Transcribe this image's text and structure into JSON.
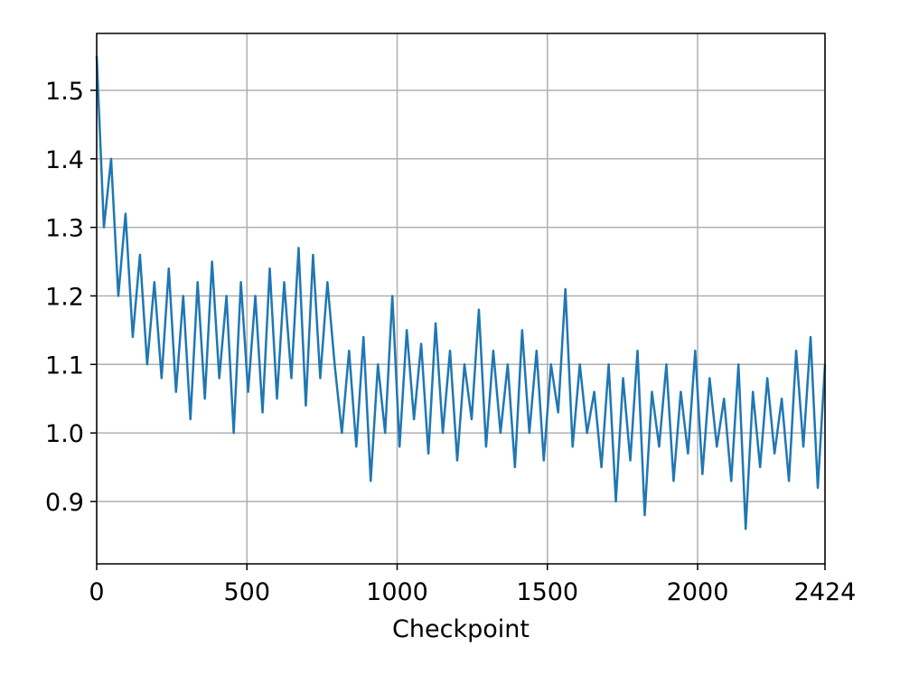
{
  "chart_data": {
    "type": "line",
    "x_label": "Checkpoint",
    "x": [
      0,
      24,
      48,
      72,
      96,
      120,
      144,
      168,
      192,
      216,
      240,
      264,
      288,
      312,
      336,
      360,
      384,
      408,
      432,
      456,
      480,
      504,
      528,
      552,
      576,
      600,
      624,
      648,
      672,
      696,
      720,
      744,
      768,
      792,
      816,
      840,
      864,
      888,
      912,
      936,
      960,
      984,
      1008,
      1032,
      1056,
      1080,
      1104,
      1128,
      1152,
      1176,
      1200,
      1224,
      1248,
      1272,
      1296,
      1320,
      1344,
      1368,
      1392,
      1416,
      1440,
      1464,
      1488,
      1512,
      1536,
      1560,
      1584,
      1608,
      1632,
      1656,
      1680,
      1704,
      1728,
      1752,
      1776,
      1800,
      1824,
      1848,
      1872,
      1896,
      1920,
      1944,
      1968,
      1992,
      2016,
      2040,
      2064,
      2088,
      2112,
      2136,
      2160,
      2184,
      2208,
      2232,
      2256,
      2280,
      2304,
      2328,
      2352,
      2376,
      2400,
      2424
    ],
    "series": [
      {
        "color": "#1f77b4",
        "values": [
          1.55,
          1.3,
          1.4,
          1.2,
          1.32,
          1.14,
          1.26,
          1.1,
          1.22,
          1.08,
          1.24,
          1.06,
          1.2,
          1.02,
          1.22,
          1.05,
          1.25,
          1.08,
          1.2,
          1.0,
          1.22,
          1.06,
          1.2,
          1.03,
          1.24,
          1.05,
          1.22,
          1.08,
          1.27,
          1.04,
          1.26,
          1.08,
          1.22,
          1.1,
          1.0,
          1.12,
          0.98,
          1.14,
          0.93,
          1.1,
          1.0,
          1.2,
          0.98,
          1.15,
          1.02,
          1.13,
          0.97,
          1.16,
          1.0,
          1.12,
          0.96,
          1.1,
          1.02,
          1.18,
          0.98,
          1.12,
          1.0,
          1.1,
          0.95,
          1.15,
          1.0,
          1.12,
          0.96,
          1.1,
          1.03,
          1.21,
          0.98,
          1.1,
          1.0,
          1.06,
          0.95,
          1.1,
          0.9,
          1.08,
          0.96,
          1.12,
          0.88,
          1.06,
          0.98,
          1.1,
          0.93,
          1.06,
          0.97,
          1.12,
          0.94,
          1.08,
          0.98,
          1.05,
          0.93,
          1.1,
          0.86,
          1.06,
          0.95,
          1.08,
          0.97,
          1.05,
          0.93,
          1.12,
          0.98,
          1.14,
          0.92,
          1.1
        ]
      }
    ],
    "xlim": [
      0,
      2424
    ],
    "xticks": [
      0,
      500,
      1000,
      1500,
      2000,
      2424
    ],
    "ylim": [
      0.809,
      1.583
    ],
    "yticks": [
      0.9,
      {
        "value": 1,
        "label": "1.0"
      },
      1.1,
      1.2,
      1.3,
      1.4,
      1.5
    ],
    "grid": true
  }
}
